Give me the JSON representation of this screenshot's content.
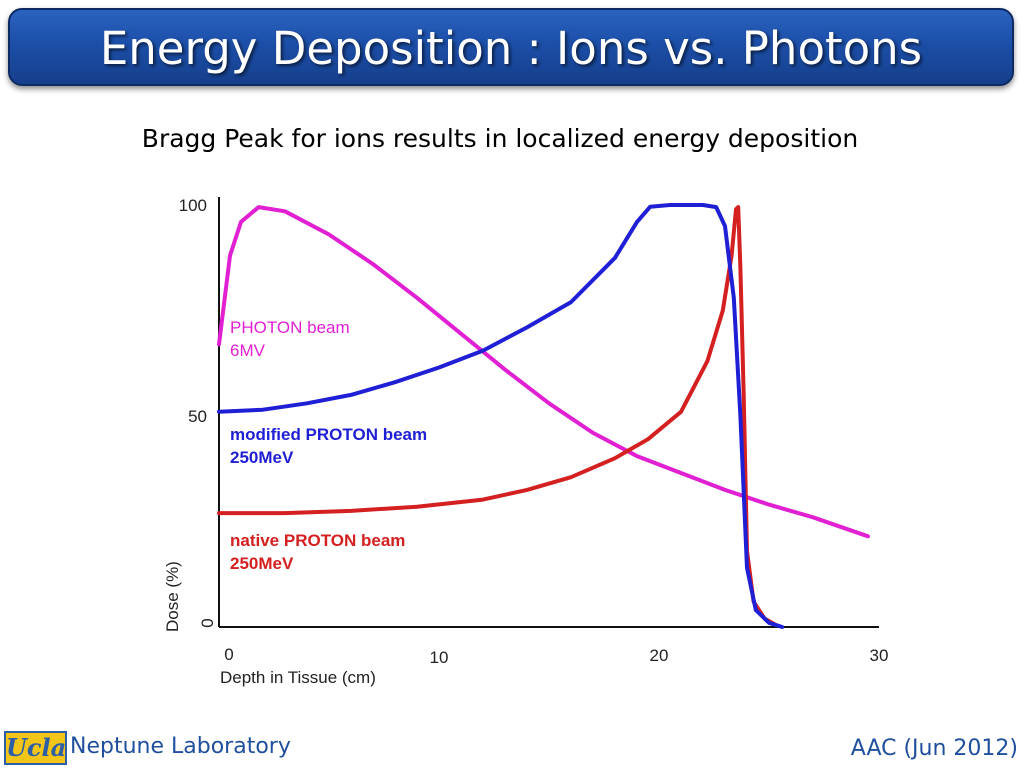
{
  "slide": {
    "title": "Energy Deposition : Ions vs. Photons",
    "subtitle": "Bragg Peak for ions results in localized energy deposition"
  },
  "footer": {
    "logo_text": "Ucla",
    "lab": "Neptune Laboratory",
    "date": "AAC (Jun 2012)"
  },
  "colors": {
    "title_bar": "#1c4fa8",
    "photon": "#e020d2",
    "modified_proton": "#1f1fd6",
    "native_proton": "#d42020",
    "footer_text": "#1f4f9d"
  },
  "chart_data": {
    "type": "line",
    "title": "",
    "xlabel": "Depth in Tissue (cm)",
    "ylabel": "Dose (%)",
    "xlim": [
      0,
      30
    ],
    "ylim": [
      0,
      100
    ],
    "x_ticks": [
      {
        "value": 0,
        "label": "0"
      },
      {
        "value": 10,
        "label": "10"
      },
      {
        "value": 20,
        "label": "20"
      },
      {
        "value": 30,
        "label": "30"
      }
    ],
    "y_ticks": [
      {
        "value": 0,
        "label": "0"
      },
      {
        "value": 50,
        "label": "50"
      },
      {
        "value": 100,
        "label": "100"
      }
    ],
    "series": [
      {
        "name": "PHOTON beam",
        "label_lines": [
          "PHOTON beam",
          "6MV"
        ],
        "color": "#e020d2",
        "points": [
          [
            0,
            67
          ],
          [
            0.5,
            88
          ],
          [
            1,
            96
          ],
          [
            1.8,
            99.5
          ],
          [
            3,
            98.5
          ],
          [
            5,
            93
          ],
          [
            7,
            86
          ],
          [
            9,
            78
          ],
          [
            11,
            69.5
          ],
          [
            13,
            61
          ],
          [
            15,
            53
          ],
          [
            17,
            46
          ],
          [
            19,
            40.5
          ],
          [
            21,
            36.5
          ],
          [
            23,
            32.5
          ],
          [
            25,
            29
          ],
          [
            27,
            26
          ],
          [
            29.5,
            21.5
          ]
        ]
      },
      {
        "name": "modified PROTON beam",
        "label_lines": [
          "modified PROTON beam",
          "250MeV"
        ],
        "color": "#1f1fd6",
        "points": [
          [
            0,
            51
          ],
          [
            2,
            51.5
          ],
          [
            4,
            53
          ],
          [
            6,
            55
          ],
          [
            8,
            58
          ],
          [
            10,
            61.5
          ],
          [
            12,
            65.5
          ],
          [
            14,
            71
          ],
          [
            16,
            77
          ],
          [
            18,
            87.5
          ],
          [
            19,
            96
          ],
          [
            19.6,
            99.6
          ],
          [
            20.5,
            100
          ],
          [
            22,
            100
          ],
          [
            22.6,
            99.5
          ],
          [
            23,
            95
          ],
          [
            23.4,
            78
          ],
          [
            23.7,
            50
          ],
          [
            24,
            14
          ],
          [
            24.4,
            4
          ],
          [
            25,
            1
          ],
          [
            25.6,
            0
          ]
        ]
      },
      {
        "name": "native PROTON beam",
        "label_lines": [
          "native PROTON beam",
          "250MeV"
        ],
        "color": "#d42020",
        "points": [
          [
            0,
            27
          ],
          [
            3,
            27
          ],
          [
            6,
            27.5
          ],
          [
            9,
            28.5
          ],
          [
            12,
            30.2
          ],
          [
            14,
            32.5
          ],
          [
            16,
            35.5
          ],
          [
            18,
            40
          ],
          [
            19.5,
            44.5
          ],
          [
            21,
            51
          ],
          [
            22.2,
            63
          ],
          [
            22.9,
            75
          ],
          [
            23.3,
            88
          ],
          [
            23.5,
            99
          ],
          [
            23.6,
            99.5
          ],
          [
            23.7,
            85
          ],
          [
            23.85,
            55
          ],
          [
            24,
            18
          ],
          [
            24.3,
            6
          ],
          [
            24.8,
            2
          ],
          [
            25.3,
            0.5
          ]
        ]
      }
    ]
  }
}
